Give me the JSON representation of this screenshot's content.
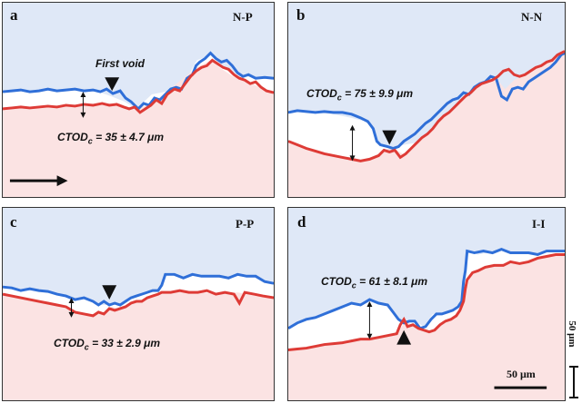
{
  "panels": [
    {
      "label": "a",
      "tag": "N-P",
      "ctod": "CTOD",
      "ctod_sub": "c",
      "ctod_value": " = 35 ± 4.7 μm",
      "note": "First void"
    },
    {
      "label": "b",
      "tag": "N-N",
      "ctod": "CTOD",
      "ctod_sub": "c",
      "ctod_value": " = 75 ± 9.9 μm"
    },
    {
      "label": "c",
      "tag": "P-P",
      "ctod": "CTOD",
      "ctod_sub": "c",
      "ctod_value": " = 33 ± 2.9 μm"
    },
    {
      "label": "d",
      "tag": "I-I",
      "ctod": "CTOD",
      "ctod_sub": "c",
      "ctod_value": " = 61 ± 8.1 μm"
    }
  ],
  "scale_bar_horizontal": "50 μm",
  "scale_bar_vertical": "50 μm",
  "colors": {
    "top_fill": "#dfe8f7",
    "bottom_fill": "#fbe3e3",
    "blue_line": "#2f6fd8",
    "red_line": "#de3b36",
    "gap_fill": "#ffffff"
  }
}
